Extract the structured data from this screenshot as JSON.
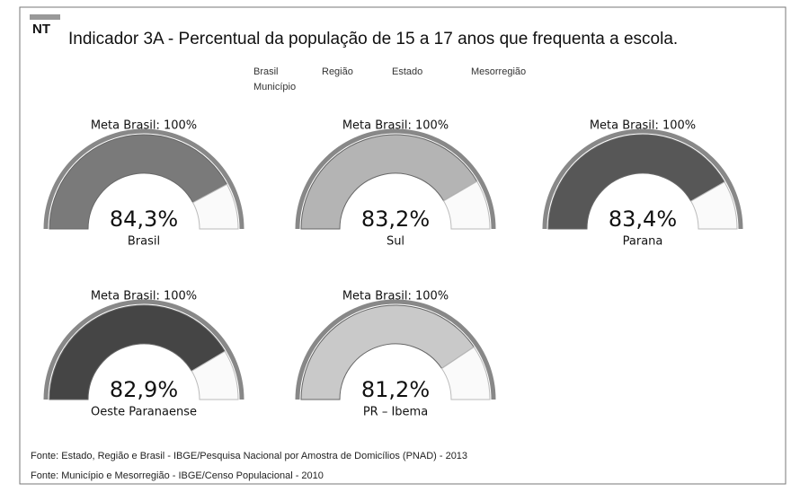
{
  "header": {
    "icon": "NT",
    "title": "Indicador 3A - Percentual da população de 15 a 17 anos que frequenta a escola.",
    "tabs": [
      "Brasil",
      "Região",
      "Estado",
      "Mesorregião",
      "Município"
    ]
  },
  "chart_data": [
    {
      "type": "gauge",
      "title": "Meta Brasil: 100%",
      "label": "Brasil",
      "values": [
        84.3
      ],
      "value_labels": [
        "84,3%"
      ],
      "ylim": [
        0,
        100
      ],
      "color": "#7a7a7a"
    },
    {
      "type": "gauge",
      "title": "Meta Brasil: 100%",
      "label": "Sul",
      "values": [
        83.2
      ],
      "value_labels": [
        "83,2%"
      ],
      "ylim": [
        0,
        100
      ],
      "color": "#b4b4b4"
    },
    {
      "type": "gauge",
      "title": "Meta Brasil: 100%",
      "label": "Parana",
      "values": [
        83.4
      ],
      "value_labels": [
        "83,4%"
      ],
      "ylim": [
        0,
        100
      ],
      "color": "#575757"
    },
    {
      "type": "gauge",
      "title": "Meta Brasil: 100%",
      "label": "Oeste Paranaense",
      "values": [
        82.9
      ],
      "value_labels": [
        "82,9%"
      ],
      "ylim": [
        0,
        100
      ],
      "color": "#454545"
    },
    {
      "type": "gauge",
      "title": "Meta Brasil: 100%",
      "label": "PR – Ibema",
      "values": [
        81.2
      ],
      "value_labels": [
        "81,2%"
      ],
      "ylim": [
        0,
        100
      ],
      "color": "#c9c9c9"
    }
  ],
  "footer": [
    "Fonte: Estado, Região e Brasil - IBGE/Pesquisa Nacional por Amostra de Domicílios (PNAD) - 2013",
    "Fonte: Município e Mesorregião - IBGE/Censo Populacional - 2010"
  ]
}
